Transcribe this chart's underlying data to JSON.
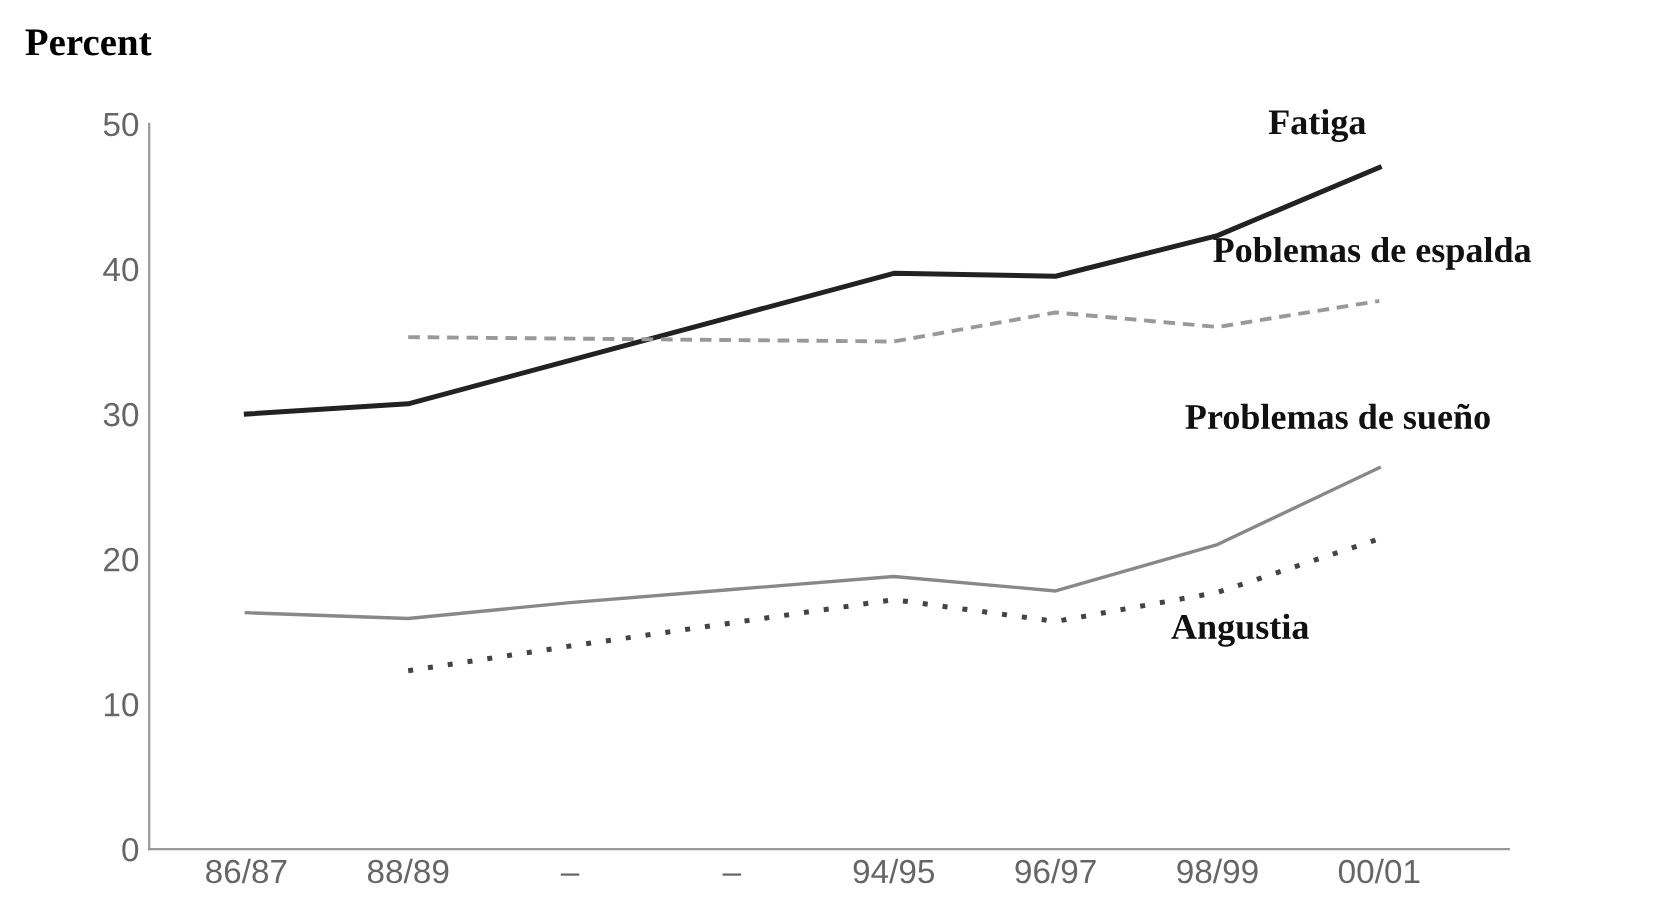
{
  "chart_data": {
    "type": "line",
    "ylabel": "Percent",
    "categories": [
      "86/87",
      "88/89",
      "–",
      "–",
      "94/95",
      "96/97",
      "98/99",
      "00/01"
    ],
    "ylim": [
      0,
      50
    ],
    "yticks": [
      0,
      10,
      20,
      30,
      40,
      50
    ],
    "grid": false,
    "legend": false,
    "marker": "none",
    "series": [
      {
        "name": "Fatiga",
        "color": "#222222",
        "line_style": "solid",
        "values": [
          30,
          30.7,
          33.7,
          36.7,
          39.7,
          39.5,
          42.3,
          47
        ]
      },
      {
        "name": "Poblemas de espalda",
        "color": "#999999",
        "line_style": "dashed",
        "values": [
          null,
          35.3,
          35.2,
          35.1,
          35,
          37,
          36,
          37.8
        ]
      },
      {
        "name": "Problemas de sueño",
        "color": "#888888",
        "line_style": "solid",
        "values": [
          16.3,
          15.9,
          17,
          17.9,
          18.8,
          17.8,
          21,
          26.3
        ]
      },
      {
        "name": "Angustia",
        "color": "#444444",
        "line_style": "dotted",
        "values": [
          null,
          12.3,
          14,
          15.6,
          17.2,
          15.7,
          17.7,
          21.4
        ]
      }
    ]
  }
}
